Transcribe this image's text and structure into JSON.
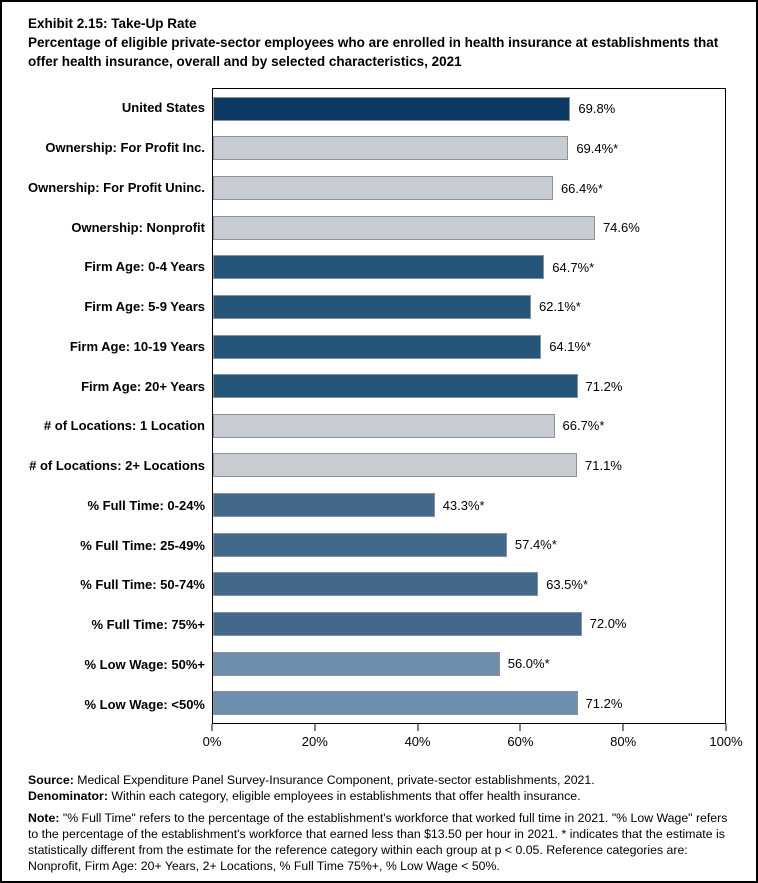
{
  "title": {
    "line1": "Exhibit 2.15: Take-Up Rate",
    "line2": "Percentage of eligible private-sector employees who are enrolled in health insurance at establishments that offer health insurance, overall and by selected characteristics, 2021"
  },
  "chart_data": {
    "type": "bar",
    "orientation": "horizontal",
    "title": "Exhibit 2.15: Take-Up Rate",
    "subtitle": "Percentage of eligible private-sector employees who are enrolled in health insurance at establishments that offer health insurance, overall and by selected characteristics, 2021",
    "xlabel": "",
    "ylabel": "",
    "xlim": [
      0,
      100
    ],
    "x_ticks": [
      "0%",
      "20%",
      "40%",
      "60%",
      "80%",
      "100%"
    ],
    "grid": false,
    "legend": false,
    "rows": [
      {
        "label": "United States",
        "value": 69.8,
        "display": "69.8%",
        "color": "navy"
      },
      {
        "label": "Ownership: For Profit Inc.",
        "value": 69.4,
        "display": "69.4%*",
        "color": "gray"
      },
      {
        "label": "Ownership: For Profit Uninc.",
        "value": 66.4,
        "display": "66.4%*",
        "color": "gray"
      },
      {
        "label": "Ownership: Nonprofit",
        "value": 74.6,
        "display": "74.6%",
        "color": "gray"
      },
      {
        "label": "Firm Age: 0-4 Years",
        "value": 64.7,
        "display": "64.7%*",
        "color": "medblue"
      },
      {
        "label": "Firm Age: 5-9 Years",
        "value": 62.1,
        "display": "62.1%*",
        "color": "medblue"
      },
      {
        "label": "Firm Age: 10-19 Years",
        "value": 64.1,
        "display": "64.1%*",
        "color": "medblue"
      },
      {
        "label": "Firm Age: 20+ Years",
        "value": 71.2,
        "display": "71.2%",
        "color": "medblue"
      },
      {
        "label": "# of Locations: 1 Location",
        "value": 66.7,
        "display": "66.7%*",
        "color": "gray"
      },
      {
        "label": "# of Locations: 2+ Locations",
        "value": 71.1,
        "display": "71.1%",
        "color": "gray"
      },
      {
        "label": "% Full Time: 0-24%",
        "value": 43.3,
        "display": "43.3%*",
        "color": "steelblue"
      },
      {
        "label": "% Full Time: 25-49%",
        "value": 57.4,
        "display": "57.4%*",
        "color": "steelblue"
      },
      {
        "label": "% Full Time: 50-74%",
        "value": 63.5,
        "display": "63.5%*",
        "color": "steelblue"
      },
      {
        "label": "% Full Time: 75%+",
        "value": 72.0,
        "display": "72.0%",
        "color": "steelblue"
      },
      {
        "label": "% Low Wage: 50%+",
        "value": 56.0,
        "display": "56.0%*",
        "color": "lightsteel"
      },
      {
        "label": "% Low Wage: <50%",
        "value": 71.2,
        "display": "71.2%",
        "color": "lightsteel"
      }
    ],
    "colors": {
      "navy": "#0D3A62",
      "gray": "#C7CCD2",
      "medblue": "#255579",
      "steelblue": "#42698B",
      "lightsteel": "#6D8EAD",
      "bar_border": "#8A9197"
    }
  },
  "footer": {
    "source_label": "Source:",
    "source_text": " Medical Expenditure Panel Survey-Insurance Component, private-sector establishments, 2021.",
    "denominator_label": "Denominator:",
    "denominator_text": " Within each category, eligible employees in establishments that offer health insurance.",
    "note_label": "Note:",
    "note_text": " \"% Full Time\" refers to the percentage of the establishment's workforce that worked full time in 2021. \"% Low Wage\" refers to the percentage of the establishment's workforce that earned less than $13.50 per hour in 2021. * indicates that the estimate is statistically different from the estimate for the reference category within each group at p < 0.05.  Reference categories are: Nonprofit, Firm Age: 20+ Years, 2+ Locations, % Full Time 75%+, % Low Wage < 50%."
  }
}
